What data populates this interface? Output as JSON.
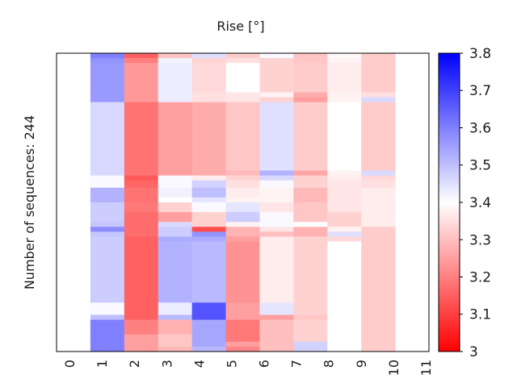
{
  "chart_data": {
    "type": "heatmap",
    "title": "Rise [°]",
    "ylabel": "Number of sequences: 244",
    "xlabel": "",
    "x_ticks": [
      "0",
      "1",
      "2",
      "3",
      "4",
      "5",
      "6",
      "7",
      "8",
      "9",
      "10",
      "11"
    ],
    "colorbar": {
      "min": 3.0,
      "max": 3.8,
      "center": 3.4,
      "ticks": [
        "3",
        "3.1",
        "3.2",
        "3.3",
        "3.4",
        "3.5",
        "3.6",
        "3.7",
        "3.8"
      ],
      "colormap": [
        "#ff0000",
        "#ffffff",
        "#0000ff"
      ]
    },
    "n_rows": 244,
    "rows": [
      {
        "row_start": 0,
        "row_end": 4,
        "values": [
          null,
          3.6,
          3.15,
          3.31,
          3.45,
          3.32,
          3.41,
          3.31,
          3.39,
          3.32,
          null
        ]
      },
      {
        "row_start": 4,
        "row_end": 8,
        "values": [
          null,
          3.57,
          3.2,
          3.42,
          3.33,
          3.35,
          3.33,
          3.31,
          3.38,
          3.32,
          null
        ]
      },
      {
        "row_start": 8,
        "row_end": 32,
        "values": [
          null,
          3.56,
          3.24,
          3.43,
          3.34,
          3.4,
          3.33,
          3.32,
          3.37,
          3.32,
          null
        ]
      },
      {
        "row_start": 32,
        "row_end": 36,
        "values": [
          null,
          3.56,
          3.24,
          3.43,
          3.35,
          3.36,
          3.38,
          3.27,
          3.38,
          3.35,
          null
        ]
      },
      {
        "row_start": 36,
        "row_end": 40,
        "values": [
          null,
          3.56,
          3.24,
          3.43,
          3.35,
          3.36,
          3.33,
          3.25,
          3.38,
          3.46,
          null
        ]
      },
      {
        "row_start": 40,
        "row_end": 96,
        "values": [
          null,
          3.46,
          3.18,
          3.25,
          3.27,
          3.31,
          3.45,
          3.32,
          3.4,
          3.32,
          null
        ]
      },
      {
        "row_start": 96,
        "row_end": 100,
        "values": [
          null,
          3.46,
          3.18,
          3.25,
          3.27,
          3.29,
          3.52,
          3.26,
          3.38,
          3.46,
          null
        ]
      },
      {
        "row_start": 100,
        "row_end": 104,
        "values": [
          null,
          3.41,
          3.14,
          3.41,
          3.37,
          3.33,
          3.46,
          3.33,
          3.37,
          3.34,
          null
        ]
      },
      {
        "row_start": 104,
        "row_end": 110,
        "values": [
          null,
          3.41,
          3.16,
          3.41,
          3.47,
          3.35,
          3.41,
          3.33,
          3.36,
          3.35,
          null
        ]
      },
      {
        "row_start": 110,
        "row_end": 118,
        "values": [
          null,
          3.52,
          3.18,
          3.42,
          3.5,
          3.37,
          3.38,
          3.29,
          3.36,
          3.37,
          null
        ]
      },
      {
        "row_start": 118,
        "row_end": 122,
        "values": [
          null,
          3.52,
          3.18,
          3.4,
          3.44,
          3.38,
          3.38,
          3.29,
          3.36,
          3.37,
          null
        ]
      },
      {
        "row_start": 122,
        "row_end": 130,
        "values": [
          null,
          3.48,
          3.19,
          3.33,
          3.41,
          3.44,
          3.36,
          3.31,
          3.36,
          3.37,
          null
        ]
      },
      {
        "row_start": 130,
        "row_end": 138,
        "values": [
          null,
          3.48,
          3.17,
          3.25,
          3.33,
          3.48,
          3.41,
          3.31,
          3.33,
          3.37,
          null
        ]
      },
      {
        "row_start": 138,
        "row_end": 142,
        "values": [
          null,
          3.49,
          3.17,
          3.46,
          3.33,
          3.38,
          3.41,
          3.4,
          3.33,
          3.37,
          null
        ]
      },
      {
        "row_start": 142,
        "row_end": 146,
        "values": [
          null,
          3.58,
          3.17,
          3.48,
          3.12,
          3.28,
          3.36,
          3.28,
          3.38,
          3.32,
          null
        ]
      },
      {
        "row_start": 146,
        "row_end": 150,
        "values": [
          null,
          3.49,
          3.17,
          3.48,
          3.57,
          3.28,
          3.3,
          3.28,
          3.45,
          3.32,
          null
        ]
      },
      {
        "row_start": 150,
        "row_end": 154,
        "values": [
          null,
          3.48,
          3.15,
          3.53,
          3.53,
          3.25,
          3.37,
          3.33,
          3.34,
          3.32,
          null
        ]
      },
      {
        "row_start": 154,
        "row_end": 204,
        "values": [
          null,
          3.48,
          3.15,
          3.52,
          3.51,
          3.23,
          3.37,
          3.33,
          3.4,
          3.32,
          null
        ]
      },
      {
        "row_start": 204,
        "row_end": 214,
        "values": [
          null,
          3.41,
          3.15,
          3.43,
          3.67,
          3.25,
          3.44,
          3.33,
          3.4,
          3.32,
          null
        ]
      },
      {
        "row_start": 214,
        "row_end": 218,
        "values": [
          null,
          3.5,
          3.15,
          3.51,
          3.67,
          3.25,
          3.25,
          3.31,
          3.4,
          3.32,
          null
        ]
      },
      {
        "row_start": 218,
        "row_end": 230,
        "values": [
          null,
          3.6,
          3.2,
          3.28,
          3.54,
          3.19,
          3.3,
          3.33,
          3.4,
          3.32,
          null
        ]
      },
      {
        "row_start": 230,
        "row_end": 236,
        "values": [
          null,
          3.6,
          3.25,
          3.31,
          3.54,
          3.19,
          3.3,
          3.33,
          3.4,
          3.32,
          null
        ]
      },
      {
        "row_start": 236,
        "row_end": 240,
        "values": [
          null,
          3.6,
          3.25,
          3.31,
          3.54,
          3.25,
          3.3,
          3.47,
          3.4,
          3.32,
          null
        ]
      },
      {
        "row_start": 240,
        "row_end": 244,
        "values": [
          null,
          3.6,
          3.25,
          3.29,
          3.51,
          3.21,
          3.3,
          3.47,
          3.4,
          3.32,
          null
        ]
      }
    ]
  }
}
